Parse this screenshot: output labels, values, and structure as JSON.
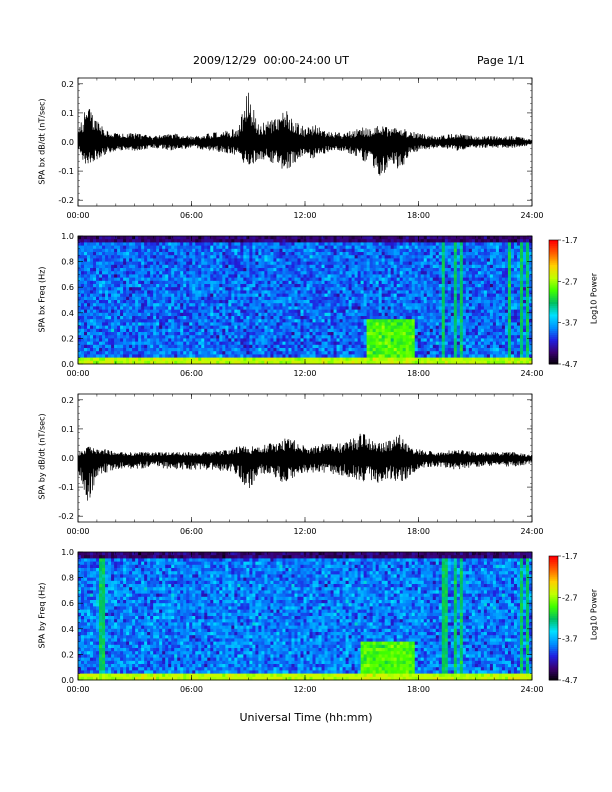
{
  "header": {
    "title": "2009/12/29  00:00-24:00 UT",
    "page": "Page 1/1"
  },
  "footer": {
    "xlabel": "Universal Time (hh:mm)"
  },
  "colors": {
    "trace": "#000000",
    "colormap": [
      "#000000",
      "#3a0070",
      "#2020e0",
      "#0090ff",
      "#00e0ff",
      "#00c060",
      "#40ff00",
      "#c0ff00",
      "#ffd000",
      "#ff6000",
      "#ff0000"
    ]
  },
  "chart_data": [
    {
      "type": "line",
      "ylabel": "SPA bx dB/dt (nT/sec)",
      "x_ticks": [
        "00:00",
        "06:00",
        "12:00",
        "18:00",
        "24:00"
      ],
      "y_ticks": [
        "0.2",
        "0.1",
        "0.0",
        "-0.1",
        "-0.2"
      ],
      "xlim": [
        0,
        24
      ],
      "ylim": [
        -0.22,
        0.22
      ],
      "envelope": {
        "x": [
          0,
          0.5,
          1,
          1.5,
          2,
          3,
          4,
          5,
          6,
          7,
          8,
          8.5,
          9,
          9.5,
          10,
          10.5,
          11,
          11.5,
          12,
          12.5,
          13,
          14,
          15,
          15.5,
          16,
          16.5,
          17,
          17.5,
          18,
          19,
          20,
          21,
          22,
          23,
          24
        ],
        "ymax": [
          0.03,
          0.14,
          0.07,
          0.05,
          0.03,
          0.03,
          0.02,
          0.03,
          0.02,
          0.03,
          0.04,
          0.05,
          0.18,
          0.06,
          0.07,
          0.08,
          0.11,
          0.07,
          0.05,
          0.06,
          0.04,
          0.03,
          0.05,
          0.05,
          0.06,
          0.05,
          0.05,
          0.04,
          0.03,
          0.02,
          0.03,
          0.02,
          0.02,
          0.02,
          0.01
        ],
        "ymin": [
          -0.03,
          -0.09,
          -0.06,
          -0.04,
          -0.03,
          -0.03,
          -0.02,
          -0.03,
          -0.02,
          -0.03,
          -0.04,
          -0.05,
          -0.09,
          -0.06,
          -0.06,
          -0.08,
          -0.1,
          -0.07,
          -0.05,
          -0.06,
          -0.04,
          -0.03,
          -0.06,
          -0.08,
          -0.15,
          -0.06,
          -0.1,
          -0.05,
          -0.03,
          -0.02,
          -0.03,
          -0.02,
          -0.02,
          -0.02,
          -0.01
        ]
      }
    },
    {
      "type": "heatmap",
      "ylabel": "SPA bx Freq (Hz)",
      "x_ticks": [
        "00:00",
        "06:00",
        "12:00",
        "18:00",
        "24:00"
      ],
      "y_ticks": [
        "1.0",
        "0.8",
        "0.6",
        "0.4",
        "0.2",
        "0.0"
      ],
      "xlim": [
        0,
        24
      ],
      "ylim": [
        0,
        1.0
      ],
      "colorbar": {
        "label": "Log10 Power",
        "ticks": [
          "-1.7",
          "-2.7",
          "-3.7",
          "-4.7"
        ],
        "range": [
          -4.7,
          -1.7
        ]
      },
      "baseline": -3.9,
      "features": [
        {
          "kind": "low_freq_band",
          "x": [
            0,
            24
          ],
          "freq_max": 0.05,
          "level": -2.6
        },
        {
          "kind": "emission",
          "x": [
            15.2,
            17.8
          ],
          "freq": [
            0.05,
            0.35
          ],
          "level": -2.9
        },
        {
          "kind": "vertical_line",
          "x": [
            19.3,
            20.0,
            20.3,
            22.8,
            23.5,
            23.8
          ],
          "level": -3.2
        },
        {
          "kind": "top_dark_band",
          "freq_min": 0.95,
          "level": -4.4
        }
      ]
    },
    {
      "type": "line",
      "ylabel": "SPA by dB/dt (nT/sec)",
      "x_ticks": [
        "00:00",
        "06:00",
        "12:00",
        "18:00",
        "24:00"
      ],
      "y_ticks": [
        "0.2",
        "0.1",
        "0.0",
        "-0.1",
        "-0.2"
      ],
      "xlim": [
        0,
        24
      ],
      "ylim": [
        -0.22,
        0.22
      ],
      "envelope": {
        "x": [
          0,
          0.5,
          1,
          1.5,
          2,
          3,
          4,
          5,
          6,
          7,
          8,
          8.5,
          9,
          9.5,
          10,
          10.5,
          11,
          11.5,
          12,
          12.5,
          13,
          14,
          15,
          15.5,
          16,
          16.5,
          17,
          17.5,
          18,
          19,
          20,
          21,
          22,
          23,
          24
        ],
        "ymax": [
          0.02,
          0.04,
          0.03,
          0.03,
          0.02,
          0.02,
          0.02,
          0.02,
          0.02,
          0.02,
          0.03,
          0.04,
          0.04,
          0.04,
          0.05,
          0.05,
          0.07,
          0.06,
          0.04,
          0.04,
          0.05,
          0.05,
          0.09,
          0.06,
          0.05,
          0.06,
          0.08,
          0.04,
          0.03,
          0.02,
          0.03,
          0.02,
          0.02,
          0.02,
          0.01
        ],
        "ymin": [
          -0.05,
          -0.16,
          -0.07,
          -0.05,
          -0.04,
          -0.04,
          -0.03,
          -0.04,
          -0.04,
          -0.04,
          -0.05,
          -0.06,
          -0.12,
          -0.06,
          -0.06,
          -0.07,
          -0.09,
          -0.06,
          -0.05,
          -0.05,
          -0.05,
          -0.06,
          -0.08,
          -0.08,
          -0.09,
          -0.07,
          -0.1,
          -0.06,
          -0.04,
          -0.03,
          -0.04,
          -0.03,
          -0.03,
          -0.03,
          -0.02
        ]
      }
    },
    {
      "type": "heatmap",
      "ylabel": "SPA by Freq (Hz)",
      "x_ticks": [
        "00:00",
        "06:00",
        "12:00",
        "18:00",
        "24:00"
      ],
      "y_ticks": [
        "1.0",
        "0.8",
        "0.6",
        "0.4",
        "0.2",
        "0.0"
      ],
      "xlim": [
        0,
        24
      ],
      "ylim": [
        0,
        1.0
      ],
      "colorbar": {
        "label": "Log10 Power",
        "ticks": [
          "-1.7",
          "-2.7",
          "-3.7",
          "-4.7"
        ],
        "range": [
          -4.7,
          -1.7
        ]
      },
      "baseline": -3.85,
      "features": [
        {
          "kind": "low_freq_band",
          "x": [
            0,
            24
          ],
          "freq_max": 0.06,
          "level": -2.6
        },
        {
          "kind": "emission",
          "x": [
            15.0,
            17.8
          ],
          "freq": [
            0.05,
            0.3
          ],
          "level": -2.9
        },
        {
          "kind": "vertical_line",
          "x": [
            1.2,
            1.4,
            19.4,
            20.0,
            20.3,
            23.4,
            23.7
          ],
          "level": -3.2
        },
        {
          "kind": "top_dark_band",
          "freq_min": 0.95,
          "level": -4.4
        }
      ]
    }
  ]
}
